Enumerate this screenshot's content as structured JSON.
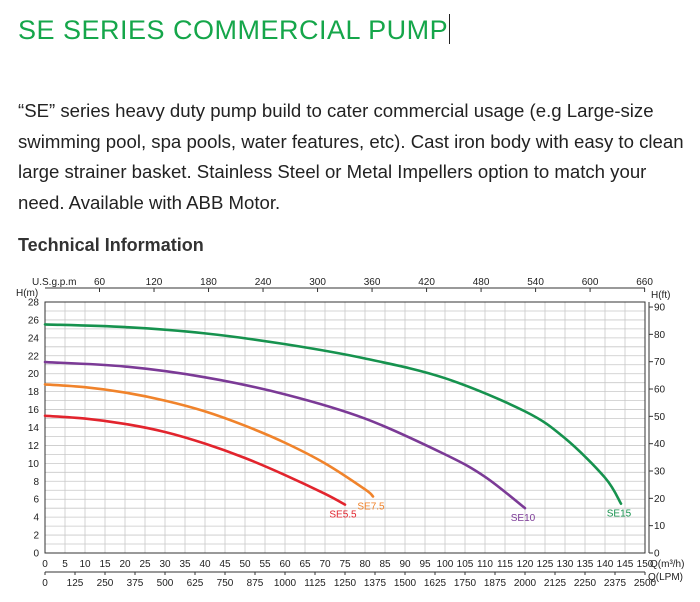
{
  "page": {
    "title": "SE SERIES COMMERCIAL PUMP",
    "intro": "“SE” series heavy duty pump build to cater commercial usage (e.g Large-size swimming pool, spa pools, water features, etc). Cast iron body with easy to clean large strainer basket. Stainless Steel or Metal Impellers option to match your need. Available with ABB Motor.",
    "section_heading": "Technical Information"
  },
  "chart_data": {
    "type": "line",
    "left_axis_label": "H(m)",
    "right_axis_label": "H(ft)",
    "top_axis_label": "U.S.g.p.m",
    "bottom_axis_label_1": "Q(m³/h)",
    "bottom_axis_label_2": "Q(LPM)",
    "left_ticks": [
      "0",
      "2",
      "4",
      "6",
      "8",
      "10",
      "12",
      "14",
      "16",
      "18",
      "20",
      "22",
      "24",
      "26",
      "28"
    ],
    "right_ticks": [
      "0",
      "10",
      "20",
      "30",
      "40",
      "50",
      "60",
      "70",
      "80",
      "90"
    ],
    "top_ticks": [
      "60",
      "120",
      "180",
      "240",
      "300",
      "360",
      "420",
      "480",
      "540",
      "600",
      "660"
    ],
    "bottom_ticks_1": [
      "0",
      "5",
      "10",
      "15",
      "20",
      "25",
      "30",
      "35",
      "40",
      "45",
      "50",
      "55",
      "60",
      "65",
      "70",
      "75",
      "80",
      "85",
      "90",
      "95",
      "100",
      "105",
      "110",
      "115",
      "120",
      "125",
      "130",
      "135",
      "140",
      "145",
      "150"
    ],
    "bottom_ticks_2": [
      "0",
      "125",
      "250",
      "375",
      "500",
      "625",
      "750",
      "875",
      "1000",
      "1125",
      "1250",
      "1375",
      "1500",
      "1625",
      "1750",
      "1875",
      "2000",
      "2125",
      "2250",
      "2375",
      "2500"
    ],
    "xlim": [
      0,
      150
    ],
    "ylim": [
      0,
      28
    ],
    "grid": true,
    "series": [
      {
        "name": "SE5.5",
        "color": "#e2242d",
        "x": [
          0,
          10,
          20,
          30,
          40,
          50,
          60,
          70,
          75
        ],
        "y": [
          15.3,
          15.0,
          14.4,
          13.5,
          12.2,
          10.6,
          8.7,
          6.6,
          5.4
        ]
      },
      {
        "name": "SE7.5",
        "color": "#f0832b",
        "x": [
          0,
          10,
          20,
          30,
          40,
          50,
          60,
          70,
          80,
          82
        ],
        "y": [
          18.8,
          18.5,
          17.9,
          17.0,
          15.8,
          14.2,
          12.3,
          10.0,
          7.1,
          6.3
        ]
      },
      {
        "name": "SE10",
        "color": "#7b3a96",
        "x": [
          0,
          20,
          40,
          60,
          80,
          100,
          110,
          120
        ],
        "y": [
          21.3,
          20.8,
          19.6,
          17.7,
          15.0,
          11.0,
          8.5,
          5.0
        ]
      },
      {
        "name": "SE15",
        "color": "#16924e",
        "x": [
          0,
          20,
          40,
          60,
          80,
          100,
          120,
          130,
          140,
          144
        ],
        "y": [
          25.5,
          25.2,
          24.5,
          23.3,
          21.7,
          19.5,
          15.8,
          12.8,
          8.4,
          5.5
        ]
      }
    ]
  }
}
